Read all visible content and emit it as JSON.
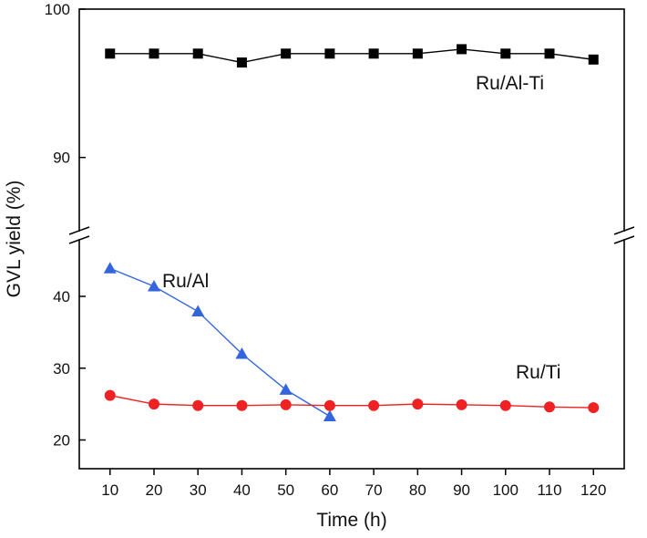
{
  "chart_data": {
    "type": "line",
    "title": "",
    "xlabel": "Time (h)",
    "ylabel": "GVL yield (%)",
    "x": [
      10,
      20,
      30,
      40,
      50,
      60,
      70,
      80,
      90,
      100,
      110,
      120
    ],
    "xlim": [
      3,
      127
    ],
    "x_ticks": [
      "10",
      "20",
      "30",
      "40",
      "50",
      "60",
      "70",
      "80",
      "90",
      "100",
      "110",
      "120"
    ],
    "broken_y_axis": true,
    "y_segments": {
      "upper": {
        "ylim": [
          85,
          100
        ],
        "ticks": [
          "90",
          "100"
        ]
      },
      "lower": {
        "ylim": [
          16,
          48
        ],
        "ticks": [
          "20",
          "30",
          "40"
        ]
      }
    },
    "legend": "none",
    "grid": false,
    "series": [
      {
        "name": "Ru/Al-Ti",
        "color": "#000000",
        "marker": "square",
        "segment": "upper",
        "x": [
          10,
          20,
          30,
          40,
          50,
          60,
          70,
          80,
          90,
          100,
          110,
          120
        ],
        "values": [
          97.0,
          97.0,
          97.0,
          96.4,
          97.0,
          97.0,
          97.0,
          97.0,
          97.3,
          97.0,
          97.0,
          96.6
        ]
      },
      {
        "name": "Ru/Al",
        "color": "#3366dd",
        "marker": "triangle",
        "segment": "lower",
        "x": [
          10,
          20,
          30,
          40,
          50,
          60
        ],
        "values": [
          43.9,
          41.4,
          37.9,
          32.0,
          27.0,
          23.3
        ]
      },
      {
        "name": "Ru/Ti",
        "color": "#ee2222",
        "marker": "circle",
        "segment": "lower",
        "x": [
          10,
          20,
          30,
          40,
          50,
          60,
          70,
          80,
          90,
          100,
          110,
          120
        ],
        "values": [
          26.2,
          25.0,
          24.8,
          24.8,
          24.9,
          24.8,
          24.8,
          25.0,
          24.9,
          24.8,
          24.6,
          24.5
        ]
      }
    ]
  }
}
